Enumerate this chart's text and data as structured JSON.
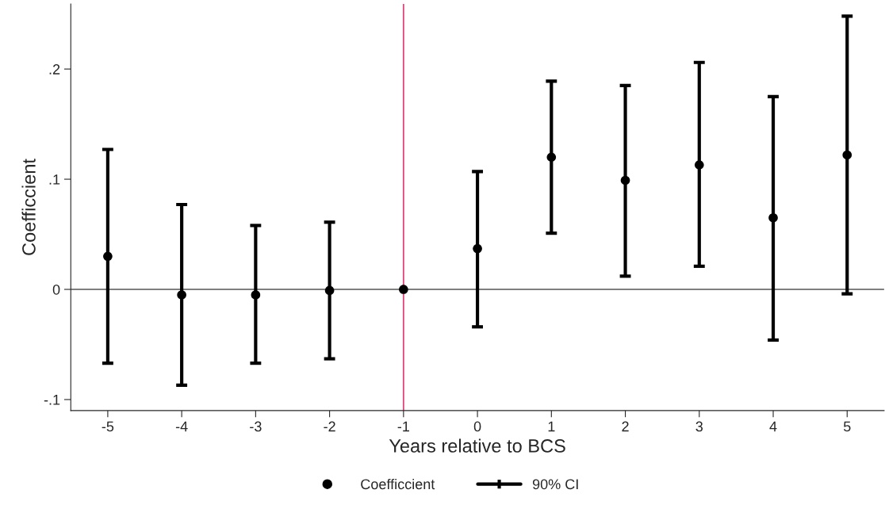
{
  "chart_data": {
    "type": "scatter",
    "xlabel": "Years relative to BCS",
    "ylabel": "Coefficcient",
    "x": [
      -5,
      -4,
      -3,
      -2,
      -1,
      0,
      1,
      2,
      3,
      4,
      5
    ],
    "series": [
      {
        "name": "Coefficcient",
        "color": "#000000",
        "values": [
          0.03,
          -0.005,
          -0.005,
          -0.001,
          0,
          0.037,
          0.12,
          0.099,
          0.113,
          0.065,
          0.122
        ],
        "errors": [
          [
            -0.067,
            0.127
          ],
          [
            -0.087,
            0.077
          ],
          [
            -0.067,
            0.058
          ],
          [
            -0.063,
            0.061
          ],
          null,
          [
            -0.034,
            0.107
          ],
          [
            0.051,
            0.189
          ],
          [
            0.012,
            0.185
          ],
          [
            0.021,
            0.206
          ],
          [
            -0.046,
            0.175
          ],
          [
            -0.004,
            0.248
          ]
        ]
      }
    ],
    "xlim": [
      -5.5,
      5.5
    ],
    "ylim": [
      -0.11,
      0.259
    ],
    "xticks": [
      -5,
      -4,
      -3,
      -2,
      -1,
      0,
      1,
      2,
      3,
      4,
      5
    ],
    "yticks": [
      {
        "value": -0.1,
        "label": "-.1"
      },
      0,
      {
        "value": 0.1,
        "label": ".1"
      },
      {
        "value": 0.2,
        "label": ".2"
      }
    ],
    "ref_lines": [
      {
        "axis": "y",
        "value": 0,
        "color": "#555555"
      },
      {
        "axis": "x",
        "value": -1,
        "color": "#e0457b"
      }
    ],
    "annotations": [
      "90% CI"
    ],
    "marker": "circle",
    "grid": false,
    "legend": "bottom"
  }
}
